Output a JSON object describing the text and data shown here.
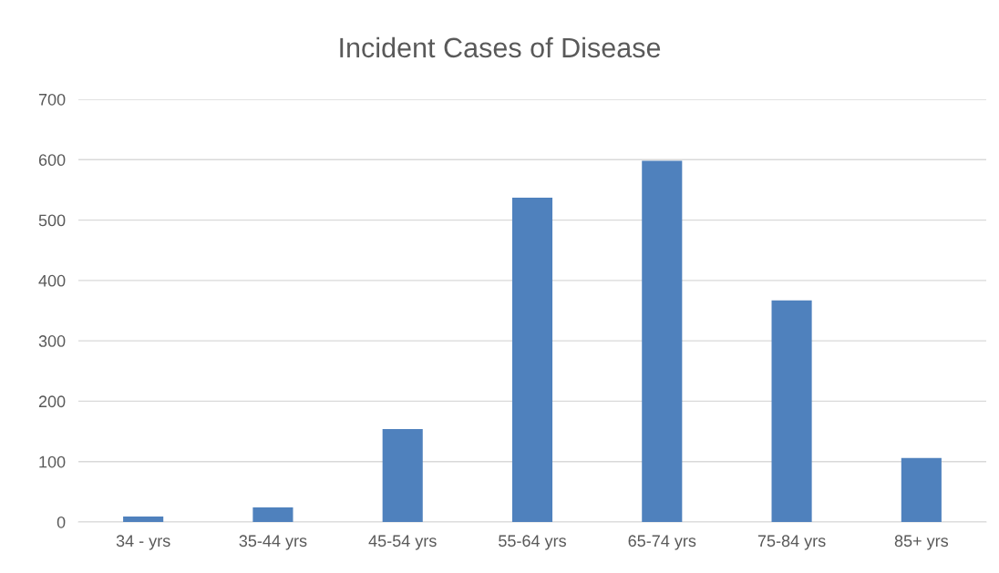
{
  "chart_data": {
    "type": "bar",
    "title": "Incident Cases of Disease",
    "categories": [
      "34 - yrs",
      "35-44 yrs",
      "45-54 yrs",
      "55-64 yrs",
      "65-74 yrs",
      "75-84 yrs",
      "85+ yrs"
    ],
    "values": [
      9,
      24,
      154,
      537,
      598,
      367,
      106
    ],
    "color": "#4f81bd",
    "ylim": [
      0,
      700
    ],
    "yticks": [
      0,
      100,
      200,
      300,
      400,
      500,
      600,
      700
    ],
    "grid": "y"
  }
}
